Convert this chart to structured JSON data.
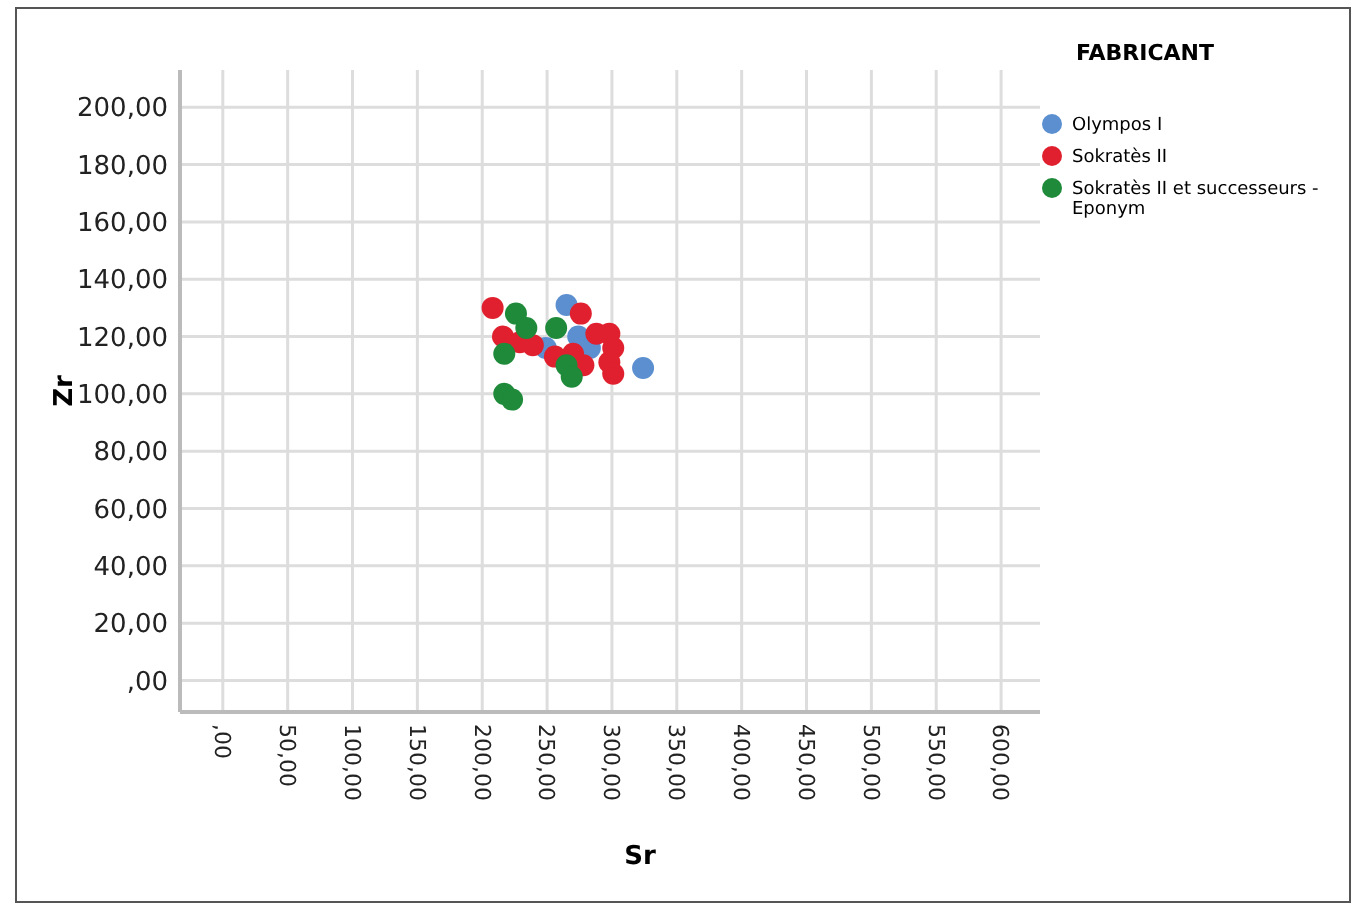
{
  "chart_data": {
    "type": "scatter",
    "xlabel": "Sr",
    "ylabel": "Zr",
    "legend_title": "FABRICANT",
    "legend": "top right",
    "grid": true,
    "marker": "circle",
    "xlim": [
      -33,
      630
    ],
    "ylim": [
      -11,
      213
    ],
    "xticks": [
      {
        "value": 0,
        "label": ",00"
      },
      {
        "value": 50,
        "label": "50,00"
      },
      {
        "value": 100,
        "label": "100,00"
      },
      {
        "value": 150,
        "label": "150,00"
      },
      {
        "value": 200,
        "label": "200,00"
      },
      {
        "value": 250,
        "label": "250,00"
      },
      {
        "value": 300,
        "label": "300,00"
      },
      {
        "value": 350,
        "label": "350,00"
      },
      {
        "value": 400,
        "label": "400,00"
      },
      {
        "value": 450,
        "label": "450,00"
      },
      {
        "value": 500,
        "label": "500,00"
      },
      {
        "value": 550,
        "label": "550,00"
      },
      {
        "value": 600,
        "label": "600,00"
      }
    ],
    "yticks": [
      {
        "value": 0,
        "label": ",00"
      },
      {
        "value": 20,
        "label": "20,00"
      },
      {
        "value": 40,
        "label": "40,00"
      },
      {
        "value": 60,
        "label": "60,00"
      },
      {
        "value": 80,
        "label": "80,00"
      },
      {
        "value": 100,
        "label": "100,00"
      },
      {
        "value": 120,
        "label": "120,00"
      },
      {
        "value": 140,
        "label": "140,00"
      },
      {
        "value": 160,
        "label": "160,00"
      },
      {
        "value": 180,
        "label": "180,00"
      },
      {
        "value": 200,
        "label": "200,00"
      }
    ],
    "series": [
      {
        "name": "Olympos I",
        "color": "#5b8fd0",
        "x": [
          265,
          324,
          274,
          283,
          249
        ],
        "values": [
          131,
          109,
          120,
          116,
          116
        ]
      },
      {
        "name": "Sokratès II",
        "color": "#e0202e",
        "x": [
          208,
          276,
          216,
          239,
          256,
          278,
          288,
          298,
          301,
          298,
          301,
          270,
          229
        ],
        "values": [
          130,
          128,
          120,
          117,
          113,
          110,
          121,
          121,
          116,
          111,
          107,
          114,
          118
        ]
      },
      {
        "name": "Sokratès II et successeurs - Eponym",
        "color": "#1e8a3a",
        "x": [
          226,
          234,
          257,
          217,
          217,
          265,
          269,
          223
        ],
        "values": [
          128,
          123,
          123,
          114,
          100,
          110,
          106,
          98
        ]
      }
    ]
  }
}
